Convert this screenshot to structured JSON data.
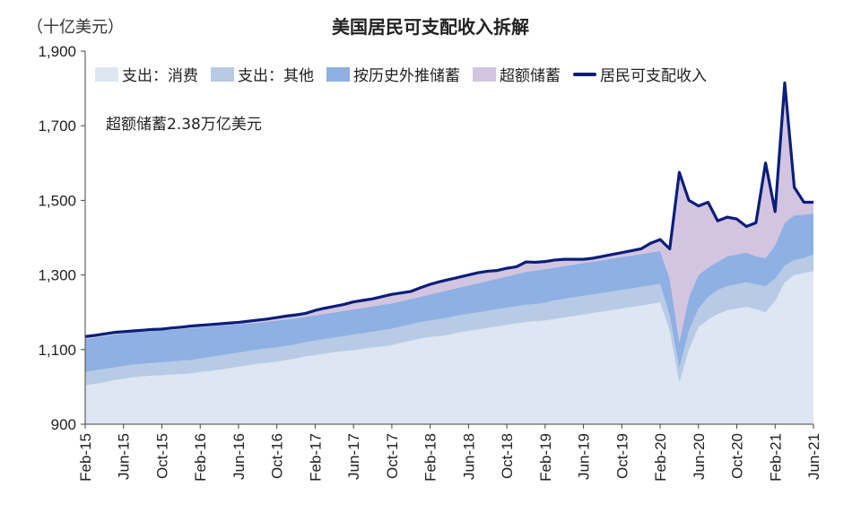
{
  "chart_data": {
    "type": "area",
    "title": "美国居民可支配收入拆解",
    "ylabel": "（十亿美元）",
    "ylim": [
      900,
      1900
    ],
    "yticks": [
      "900",
      "1,100",
      "1,300",
      "1,500",
      "1,700",
      "1,900"
    ],
    "x": [
      "2015-02",
      "2015-03",
      "2015-04",
      "2015-05",
      "2015-06",
      "2015-07",
      "2015-08",
      "2015-09",
      "2015-10",
      "2015-11",
      "2015-12",
      "2016-01",
      "2016-02",
      "2016-03",
      "2016-04",
      "2016-05",
      "2016-06",
      "2016-07",
      "2016-08",
      "2016-09",
      "2016-10",
      "2016-11",
      "2016-12",
      "2017-01",
      "2017-02",
      "2017-03",
      "2017-04",
      "2017-05",
      "2017-06",
      "2017-07",
      "2017-08",
      "2017-09",
      "2017-10",
      "2017-11",
      "2017-12",
      "2018-01",
      "2018-02",
      "2018-03",
      "2018-04",
      "2018-05",
      "2018-06",
      "2018-07",
      "2018-08",
      "2018-09",
      "2018-10",
      "2018-11",
      "2018-12",
      "2019-01",
      "2019-02",
      "2019-03",
      "2019-04",
      "2019-05",
      "2019-06",
      "2019-07",
      "2019-08",
      "2019-09",
      "2019-10",
      "2019-11",
      "2019-12",
      "2020-01",
      "2020-02",
      "2020-03",
      "2020-04",
      "2020-05",
      "2020-06",
      "2020-07",
      "2020-08",
      "2020-09",
      "2020-10",
      "2020-11",
      "2020-12",
      "2021-01",
      "2021-02",
      "2021-03",
      "2021-04",
      "2021-05",
      "2021-06"
    ],
    "xticks": [
      "Feb-15",
      "Jun-15",
      "Oct-15",
      "Feb-16",
      "Jun-16",
      "Oct-16",
      "Feb-17",
      "Jun-17",
      "Oct-17",
      "Feb-18",
      "Jun-18",
      "Oct-18",
      "Feb-19",
      "Jun-19",
      "Oct-19",
      "Feb-20",
      "Jun-20",
      "Oct-20",
      "Feb-21",
      "Jun-21"
    ],
    "series": [
      {
        "name": "支出：消费",
        "color": "#dde6f2",
        "values": [
          1005,
          1008,
          1012,
          1018,
          1022,
          1026,
          1028,
          1030,
          1031,
          1033,
          1034,
          1036,
          1040,
          1042,
          1046,
          1050,
          1054,
          1058,
          1062,
          1064,
          1068,
          1072,
          1076,
          1082,
          1085,
          1089,
          1093,
          1096,
          1098,
          1102,
          1106,
          1108,
          1112,
          1118,
          1124,
          1130,
          1134,
          1136,
          1140,
          1146,
          1150,
          1154,
          1158,
          1162,
          1166,
          1170,
          1174,
          1176,
          1178,
          1182,
          1186,
          1190,
          1194,
          1198,
          1202,
          1206,
          1210,
          1214,
          1218,
          1222,
          1226,
          1150,
          1010,
          1100,
          1160,
          1180,
          1195,
          1205,
          1210,
          1215,
          1208,
          1200,
          1230,
          1280,
          1300,
          1305,
          1310
        ]
      },
      {
        "name": "支出：其他",
        "color": "#b7cbe6",
        "values": [
          1040,
          1044,
          1048,
          1052,
          1056,
          1060,
          1062,
          1064,
          1066,
          1068,
          1070,
          1072,
          1076,
          1080,
          1084,
          1088,
          1092,
          1096,
          1100,
          1103,
          1106,
          1110,
          1114,
          1120,
          1124,
          1128,
          1132,
          1136,
          1140,
          1144,
          1148,
          1152,
          1156,
          1162,
          1168,
          1174,
          1178,
          1182,
          1186,
          1192,
          1196,
          1200,
          1204,
          1208,
          1212,
          1216,
          1220,
          1222,
          1226,
          1232,
          1236,
          1240,
          1244,
          1248,
          1252,
          1256,
          1260,
          1264,
          1268,
          1272,
          1276,
          1190,
          1050,
          1150,
          1210,
          1240,
          1260,
          1270,
          1275,
          1280,
          1275,
          1270,
          1290,
          1325,
          1340,
          1345,
          1355
        ]
      },
      {
        "name": "按历史外推储蓄",
        "color": "#8eb0e2",
        "values": [
          1128,
          1132,
          1136,
          1140,
          1144,
          1146,
          1148,
          1150,
          1152,
          1153,
          1155,
          1158,
          1160,
          1162,
          1164,
          1166,
          1168,
          1170,
          1172,
          1175,
          1178,
          1181,
          1184,
          1188,
          1192,
          1196,
          1200,
          1204,
          1208,
          1212,
          1216,
          1220,
          1224,
          1230,
          1236,
          1242,
          1248,
          1254,
          1260,
          1266,
          1272,
          1278,
          1284,
          1290,
          1296,
          1302,
          1308,
          1312,
          1316,
          1320,
          1324,
          1328,
          1332,
          1336,
          1340,
          1344,
          1348,
          1352,
          1356,
          1360,
          1364,
          1290,
          1120,
          1240,
          1300,
          1320,
          1335,
          1350,
          1355,
          1360,
          1350,
          1345,
          1380,
          1440,
          1460,
          1462,
          1465
        ]
      },
      {
        "name": "超额储蓄",
        "color": "#d3c5df",
        "values": [
          1135,
          1138,
          1142,
          1146,
          1148,
          1150,
          1152,
          1154,
          1155,
          1158,
          1160,
          1163,
          1165,
          1167,
          1169,
          1171,
          1173,
          1176,
          1179,
          1182,
          1186,
          1190,
          1193,
          1197,
          1205,
          1211,
          1216,
          1221,
          1228,
          1232,
          1236,
          1242,
          1248,
          1252,
          1256,
          1266,
          1275,
          1282,
          1288,
          1294,
          1300,
          1306,
          1310,
          1312,
          1318,
          1322,
          1335,
          1334,
          1336,
          1340,
          1342,
          1342,
          1342,
          1345,
          1350,
          1355,
          1360,
          1365,
          1370,
          1385,
          1395,
          1370,
          1575,
          1500,
          1485,
          1495,
          1445,
          1455,
          1450,
          1430,
          1440,
          1600,
          1470,
          1815,
          1535,
          1495,
          1495
        ]
      },
      {
        "name": "居民可支配收入",
        "color": "#0b1e7a",
        "values": [
          1135,
          1138,
          1142,
          1146,
          1148,
          1150,
          1152,
          1154,
          1155,
          1158,
          1160,
          1163,
          1165,
          1167,
          1169,
          1171,
          1173,
          1176,
          1179,
          1182,
          1186,
          1190,
          1193,
          1197,
          1205,
          1211,
          1216,
          1221,
          1228,
          1232,
          1236,
          1242,
          1248,
          1252,
          1256,
          1266,
          1275,
          1282,
          1288,
          1294,
          1300,
          1306,
          1310,
          1312,
          1318,
          1322,
          1335,
          1334,
          1336,
          1340,
          1342,
          1342,
          1342,
          1345,
          1350,
          1355,
          1360,
          1365,
          1370,
          1385,
          1395,
          1370,
          1575,
          1500,
          1485,
          1495,
          1445,
          1455,
          1450,
          1430,
          1440,
          1600,
          1470,
          1815,
          1535,
          1495,
          1495
        ]
      }
    ],
    "annotation": "超额储蓄2.38万亿美元",
    "legend_position": "top-left",
    "grid": false
  }
}
